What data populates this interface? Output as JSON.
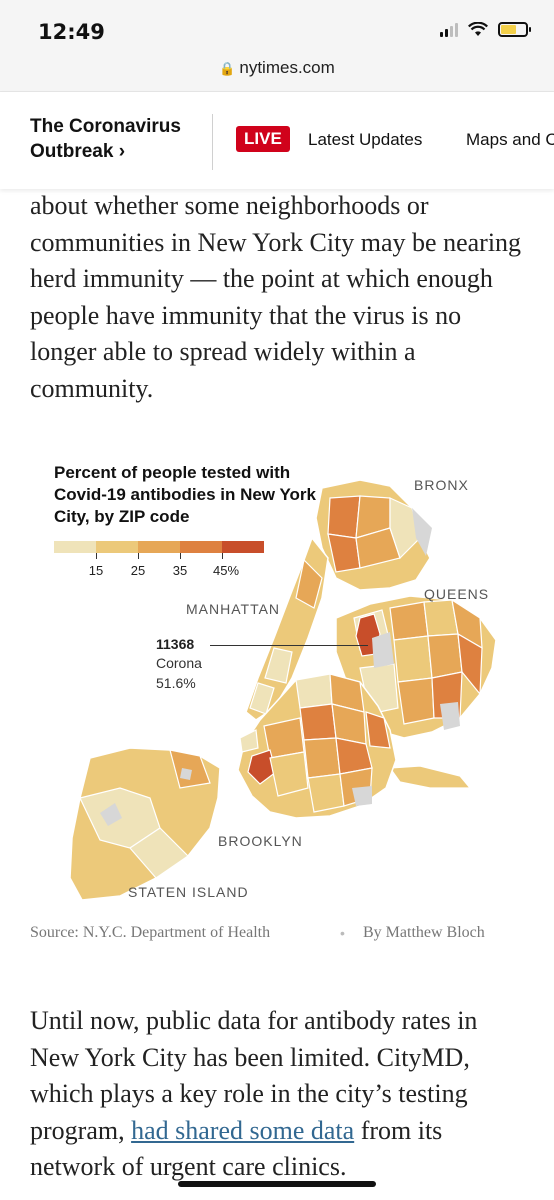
{
  "status_bar": {
    "time": "12:49",
    "url": "nytimes.com"
  },
  "header": {
    "section_line1": "The Coronavirus",
    "section_line2": "Outbreak",
    "chevron": "›",
    "live_label": "LIVE",
    "latest_label": "Latest Updates",
    "maps_label": "Maps and C"
  },
  "article": {
    "para1": "about whether some neighborhoods or communities in New York City may be nearing herd immunity — the point at which enough people have immunity that the virus is no longer able to spread widely within a community.",
    "para2_prefix": "Until now, public data for antibody rates in New York City has been limited. CityMD, which plays a key role in the city’s testing program, ",
    "para2_link": "had shared some data",
    "para2_suffix": " from its network of urgent care clinics."
  },
  "chart_data": {
    "type": "choropleth",
    "title": "Percent of people tested with Covid-19 antibodies in New York City, by ZIP code",
    "legend": {
      "ticks": [
        "15",
        "25",
        "35",
        "45%"
      ],
      "colors": [
        "#efe3b9",
        "#ecc97a",
        "#e6a757",
        "#de8140",
        "#c84e2a"
      ]
    },
    "boroughs": [
      "BRONX",
      "QUEENS",
      "MANHATTAN",
      "BROOKLYN",
      "STATEN ISLAND"
    ],
    "callout": {
      "zip": "11368",
      "name": "Corona",
      "value": "51.6%"
    },
    "source": "Source: N.Y.C. Department of Health",
    "byline": "By Matthew Bloch"
  }
}
